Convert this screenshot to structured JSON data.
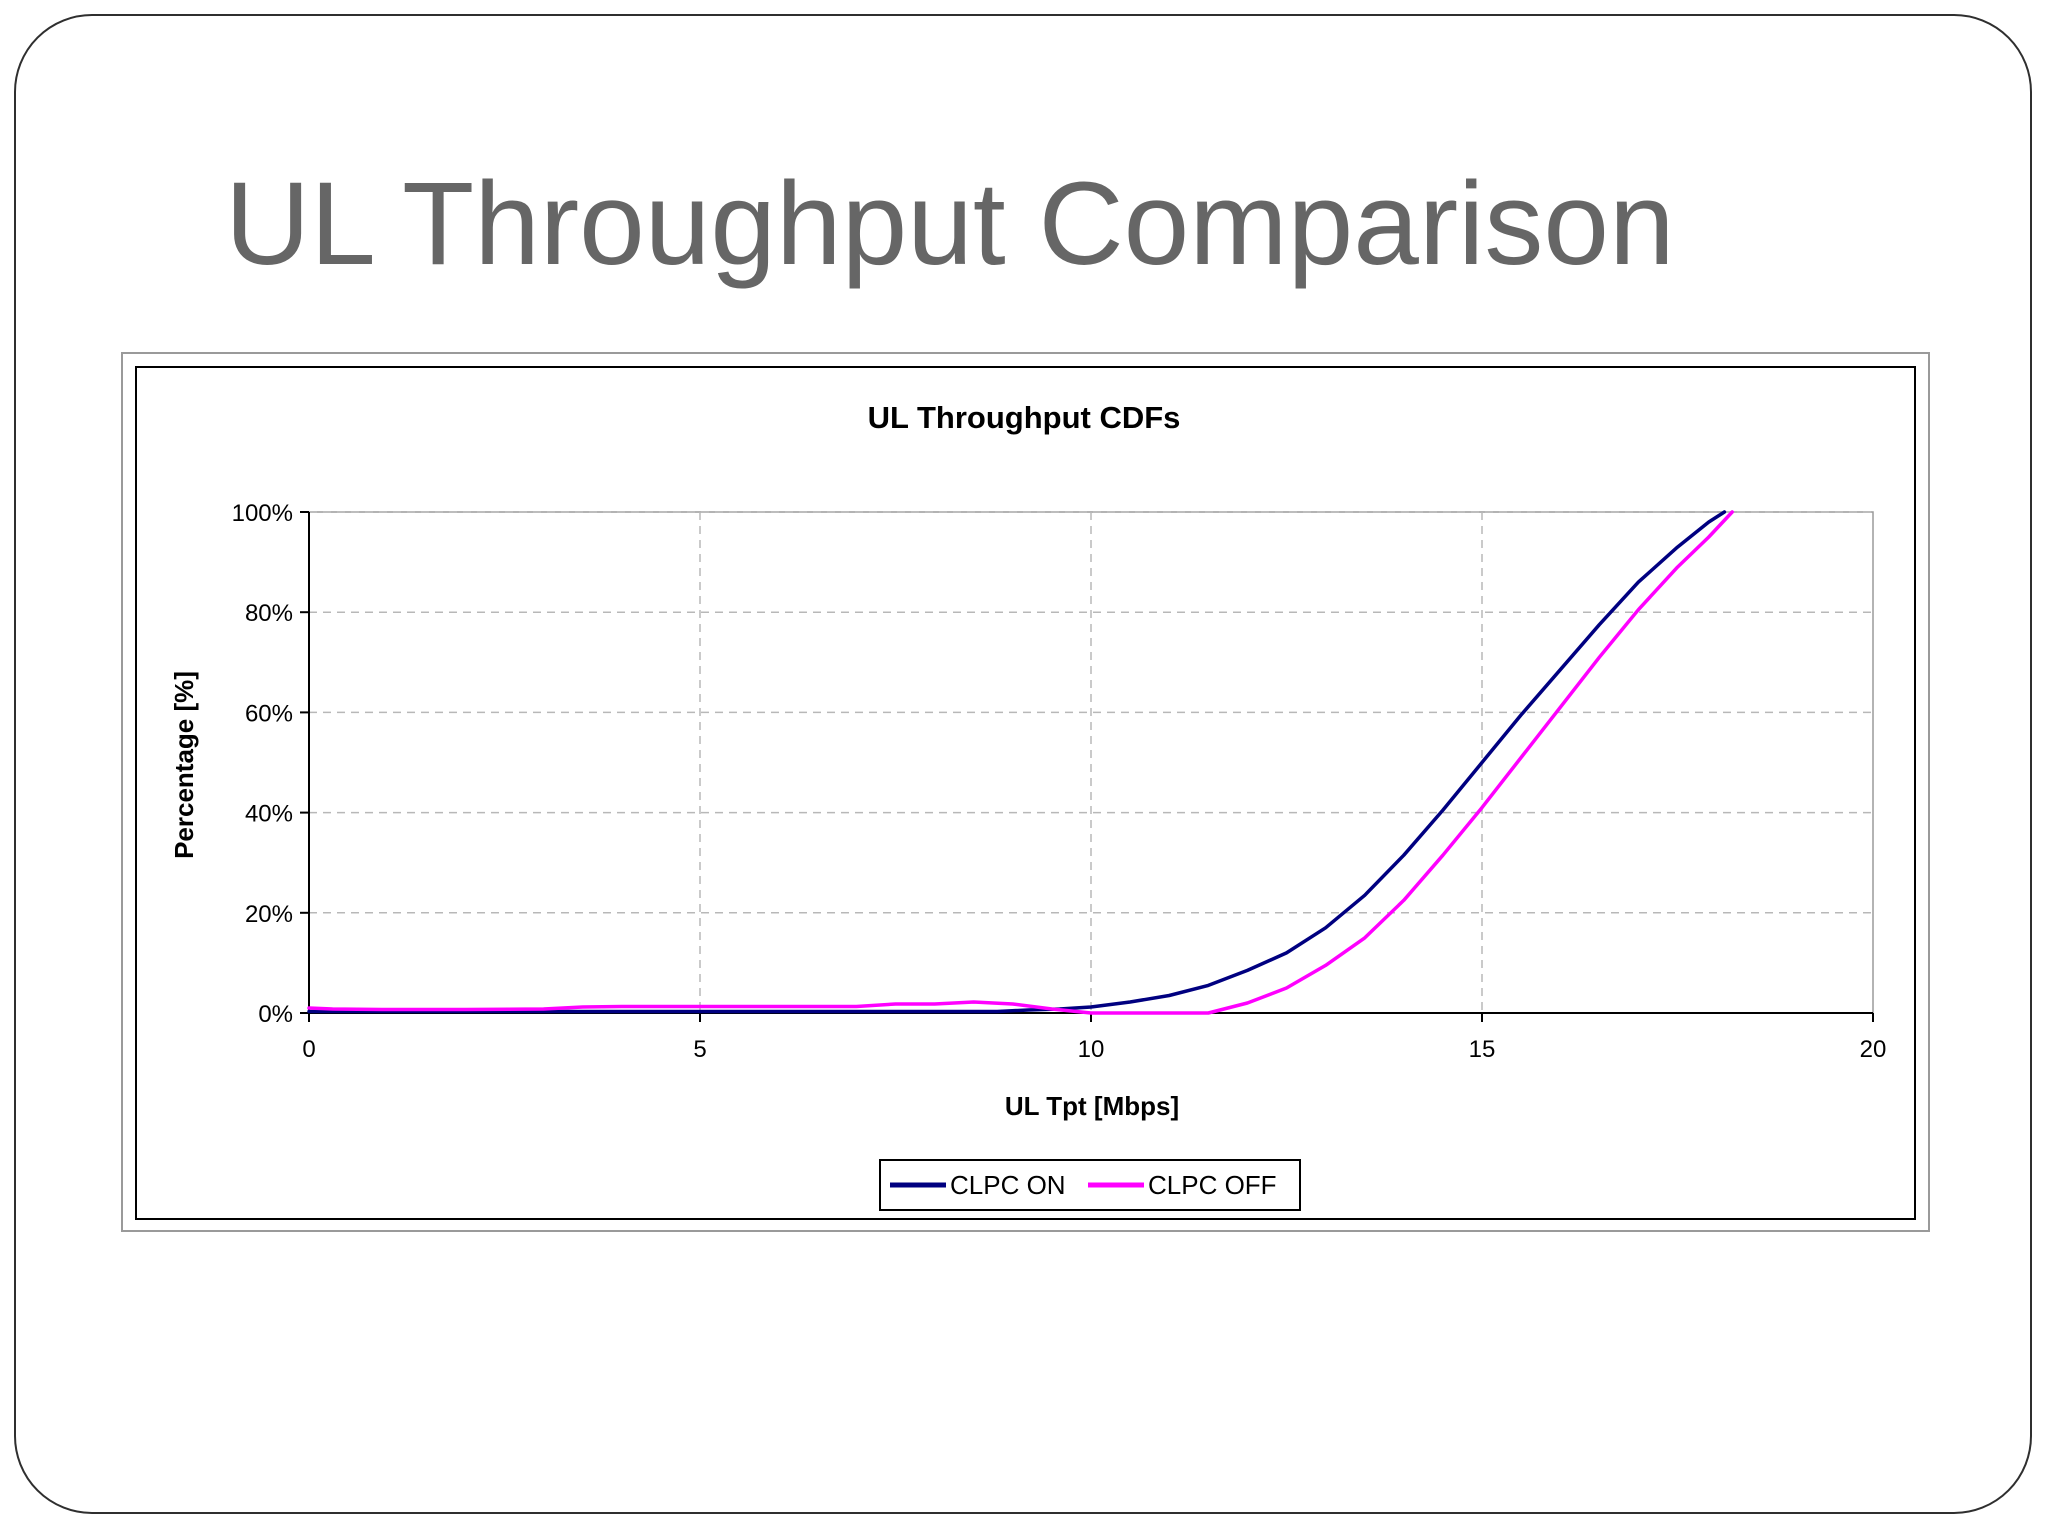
{
  "slide": {
    "title": "UL Throughput Comparison"
  },
  "chart_data": {
    "type": "line",
    "title": "UL Throughput CDFs",
    "xlabel": "UL Tpt [Mbps]",
    "ylabel": "Percentage [%]",
    "xlim": [
      0,
      20
    ],
    "ylim": [
      0,
      100
    ],
    "x_ticks": [
      0,
      5,
      10,
      15,
      20
    ],
    "y_ticks": [
      0,
      20,
      40,
      60,
      80,
      100
    ],
    "y_tick_labels": [
      "0%",
      "20%",
      "40%",
      "60%",
      "80%",
      "100%"
    ],
    "grid": true,
    "grid_style": "dashed",
    "legend_position": "bottom",
    "series": [
      {
        "name": "CLPC ON",
        "color": "#000080",
        "points": [
          [
            0,
            0.3
          ],
          [
            6,
            0.3
          ],
          [
            8.8,
            0.3
          ],
          [
            9.2,
            0.6
          ],
          [
            9.6,
            0.8
          ],
          [
            10,
            1.2
          ],
          [
            10.5,
            2.2
          ],
          [
            11,
            3.5
          ],
          [
            11.5,
            5.5
          ],
          [
            12,
            8.5
          ],
          [
            12.5,
            12
          ],
          [
            13,
            17
          ],
          [
            13.5,
            23.5
          ],
          [
            14,
            31.5
          ],
          [
            14.5,
            40.5
          ],
          [
            15,
            50
          ],
          [
            15.5,
            59.5
          ],
          [
            16,
            68.5
          ],
          [
            16.5,
            77.5
          ],
          [
            17,
            86
          ],
          [
            17.5,
            93
          ],
          [
            17.9,
            98
          ],
          [
            18.1,
            100
          ]
        ]
      },
      {
        "name": "CLPC OFF",
        "color": "#FF00FF",
        "points": [
          [
            0,
            1
          ],
          [
            0.3,
            0.8
          ],
          [
            1,
            0.7
          ],
          [
            2,
            0.7
          ],
          [
            3,
            0.8
          ],
          [
            3.5,
            1.2
          ],
          [
            4,
            1.3
          ],
          [
            5,
            1.3
          ],
          [
            6,
            1.3
          ],
          [
            7,
            1.3
          ],
          [
            7.5,
            1.8
          ],
          [
            8,
            1.8
          ],
          [
            8.5,
            2.2
          ],
          [
            9,
            1.8
          ],
          [
            9.5,
            0.8
          ],
          [
            10,
            0
          ],
          [
            11.5,
            0
          ],
          [
            12,
            2
          ],
          [
            12.5,
            5
          ],
          [
            13,
            9.5
          ],
          [
            13.5,
            15
          ],
          [
            14,
            22.5
          ],
          [
            14.5,
            31.5
          ],
          [
            15,
            41
          ],
          [
            15.5,
            51
          ],
          [
            16,
            61
          ],
          [
            16.5,
            71
          ],
          [
            17,
            80.5
          ],
          [
            17.5,
            89
          ],
          [
            17.9,
            95
          ],
          [
            18.2,
            100
          ]
        ]
      }
    ]
  }
}
